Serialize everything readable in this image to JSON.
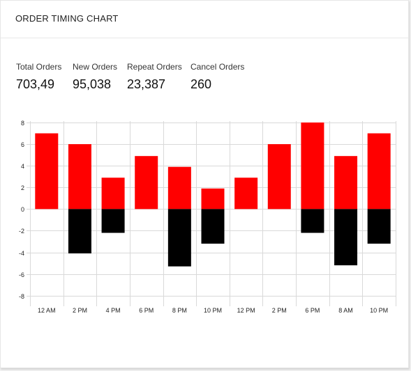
{
  "header": {
    "title": "ORDER TIMING CHART"
  },
  "stats": [
    {
      "label": "Total Orders",
      "value": "703,49"
    },
    {
      "label": "New Orders",
      "value": "95,038"
    },
    {
      "label": "Repeat Orders",
      "value": "23,387"
    },
    {
      "label": "Cancel Orders",
      "value": "260"
    }
  ],
  "colors": {
    "positive": "#ff0000",
    "negative": "#000000",
    "grid": "#d9d9d9"
  },
  "chart_data": {
    "type": "bar",
    "stacked": true,
    "categories": [
      "12 AM",
      "2 PM",
      "4 PM",
      "6 PM",
      "8 PM",
      "10 PM",
      "12 PM",
      "2 PM",
      "6 PM",
      "8 AM",
      "10 PM"
    ],
    "series": [
      {
        "values": [
          7,
          6,
          2.9,
          4.9,
          3.9,
          1.9,
          2.9,
          6,
          8,
          4.9,
          7
        ]
      },
      {
        "values": [
          0,
          -4.1,
          -2.2,
          0,
          -5.3,
          -3.2,
          0,
          0,
          -2.2,
          -5.2,
          -3.2
        ]
      }
    ],
    "ylim": [
      -8.6,
      8
    ],
    "yticks": [
      -8,
      -6,
      -4,
      -2,
      0,
      2,
      4,
      6,
      8
    ],
    "grid": true,
    "title": "",
    "xlabel": "",
    "ylabel": ""
  }
}
